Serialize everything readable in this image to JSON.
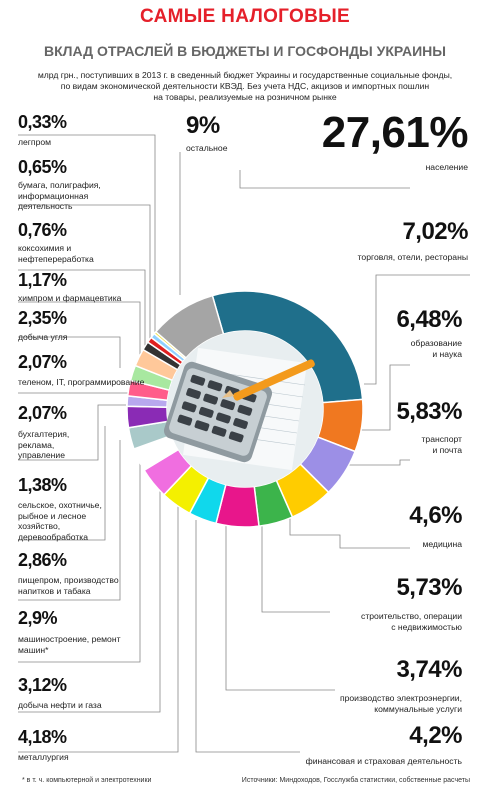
{
  "header": {
    "title": "САМЫЕ НАЛОГОВЫЕ",
    "subtitle": "ВКЛАД ОТРАСЛЕЙ В БЮДЖЕТЫ И ГОСФОНДЫ УКРАИНЫ",
    "description_1": "млрд грн., поступивших в 2013 г. в сведенный бюджет Украины и государственные социальные фонды,",
    "description_2": "по видам экономической деятельности КВЭД. Без учета НДС, акцизов и импортных пошлин",
    "description_3": "на товары, реализуемые на розничном рынке"
  },
  "footer": {
    "footnote": "* в т. ч. компьютерной и электротехники",
    "sources": "Источники: Миндоходов, Госслужба статистики, собственные расчеты"
  },
  "labels": {
    "naselenie": {
      "pct": "27,61%",
      "name": "население"
    },
    "torgovlya": {
      "pct": "7,02%",
      "name": "торговля, отели, рестораны"
    },
    "obrazovanie": {
      "pct": "6,48%",
      "name_1": "образование",
      "name_2": "и наука"
    },
    "transport": {
      "pct": "5,83%",
      "name_1": "транспорт",
      "name_2": "и почта"
    },
    "medicina": {
      "pct": "4,6%",
      "name": "медицина"
    },
    "stroitelstvo": {
      "pct": "5,73%",
      "name_1": "строительство, операции",
      "name_2": "с недвижимостью"
    },
    "energiya": {
      "pct": "3,74%",
      "name_1": "производство электроэнергии,",
      "name_2": "коммунальные услуги"
    },
    "finansy": {
      "pct": "4,2%",
      "name": "финансовая и страховая деятельность"
    },
    "ostalnoe": {
      "pct": "9%",
      "name": "остальное"
    },
    "legprom": {
      "pct": "0,33%",
      "name": "легпром"
    },
    "bumaga": {
      "pct": "0,65%",
      "name_1": "бумага, полиграфия,",
      "name_2": "информационная",
      "name_3": "деятельность"
    },
    "koks": {
      "pct": "0,76%",
      "name_1": "коксохимия и",
      "name_2": "нефтепереработка"
    },
    "himprom": {
      "pct": "1,17%",
      "name": "химпром и фармацевтика"
    },
    "ugol": {
      "pct": "2,35%",
      "name": "добыча угля"
    },
    "telecom": {
      "pct": "2,07%",
      "name": "теленом, IT, программирование"
    },
    "buhgalteriya": {
      "pct": "2,07%",
      "name_1": "бухгалтерия,",
      "name_2": "реклама,",
      "name_3": "управление"
    },
    "selskoe": {
      "pct": "1,38%",
      "name_1": "сельское, охотничье,",
      "name_2": "рыбное и лесное",
      "name_3": "хозяйство,",
      "name_4": "деревообработка"
    },
    "pischeprom": {
      "pct": "2,86%",
      "name_1": "пищепром, производство",
      "name_2": "напитков и табака"
    },
    "mashino": {
      "pct": "2,9%",
      "name_1": "машиностроение, ремонт",
      "name_2": "машин*"
    },
    "neft": {
      "pct": "3,12%",
      "name": "добыча нефти и газа"
    },
    "metallurgiya": {
      "pct": "4,18%",
      "name": "металлургия"
    }
  },
  "chart_data": {
    "type": "pie",
    "title": "САМЫЕ НАЛОГОВЫЕ",
    "subtitle": "ВКЛАД ОТРАСЛЕЙ В БЮДЖЕТЫ И ГОСФОНДЫ УКРАИНЫ",
    "unit": "%",
    "slices": [
      {
        "name": "население",
        "value": 27.61,
        "color": "#1f6f8b"
      },
      {
        "name": "торговля, отели, рестораны",
        "value": 7.02,
        "color": "#f07820"
      },
      {
        "name": "образование и наука",
        "value": 6.48,
        "color": "#9c8fe6"
      },
      {
        "name": "транспорт и почта",
        "value": 5.83,
        "color": "#ffcc00"
      },
      {
        "name": "медицина",
        "value": 4.6,
        "color": "#3cb44b"
      },
      {
        "name": "строительство, операции с недвижимостью",
        "value": 5.73,
        "color": "#e8168b"
      },
      {
        "name": "производство электроэнергии, коммунальные услуги",
        "value": 3.74,
        "color": "#10d8ec"
      },
      {
        "name": "финансовая и страховая деятельность",
        "value": 4.2,
        "color": "#f4f000"
      },
      {
        "name": "металлургия",
        "value": 4.18,
        "color": "#f06ee0"
      },
      {
        "name": "добыча нефти и газа",
        "value": 3.12,
        "color": "#ffffff"
      },
      {
        "name": "машиностроение, ремонт машин*",
        "value": 2.9,
        "color": "#a9c9c9"
      },
      {
        "name": "пищепром, производство напитков и табака",
        "value": 2.86,
        "color": "#8a2bb5"
      },
      {
        "name": "сельское, охотничье, рыбное и лесное хозяйство, деревообработка",
        "value": 1.38,
        "color": "#b8a8ee"
      },
      {
        "name": "бухгалтерия, реклама, управление",
        "value": 2.07,
        "color": "#ff5c8a"
      },
      {
        "name": "теленом, IT, программирование",
        "value": 2.07,
        "color": "#a8e8a0"
      },
      {
        "name": "добыча угля",
        "value": 2.35,
        "color": "#ffc89a"
      },
      {
        "name": "химпром и фармацевтика",
        "value": 1.17,
        "color": "#333333"
      },
      {
        "name": "коксохимия и нефтепереработка",
        "value": 0.76,
        "color": "#e02020"
      },
      {
        "name": "бумага, полиграфия, информационная деятельность",
        "value": 0.65,
        "color": "#8fd0ff"
      },
      {
        "name": "легпром",
        "value": 0.33,
        "color": "#f0e040"
      },
      {
        "name": "остальное",
        "value": 9.0,
        "color": "#a5a5a5"
      }
    ]
  }
}
